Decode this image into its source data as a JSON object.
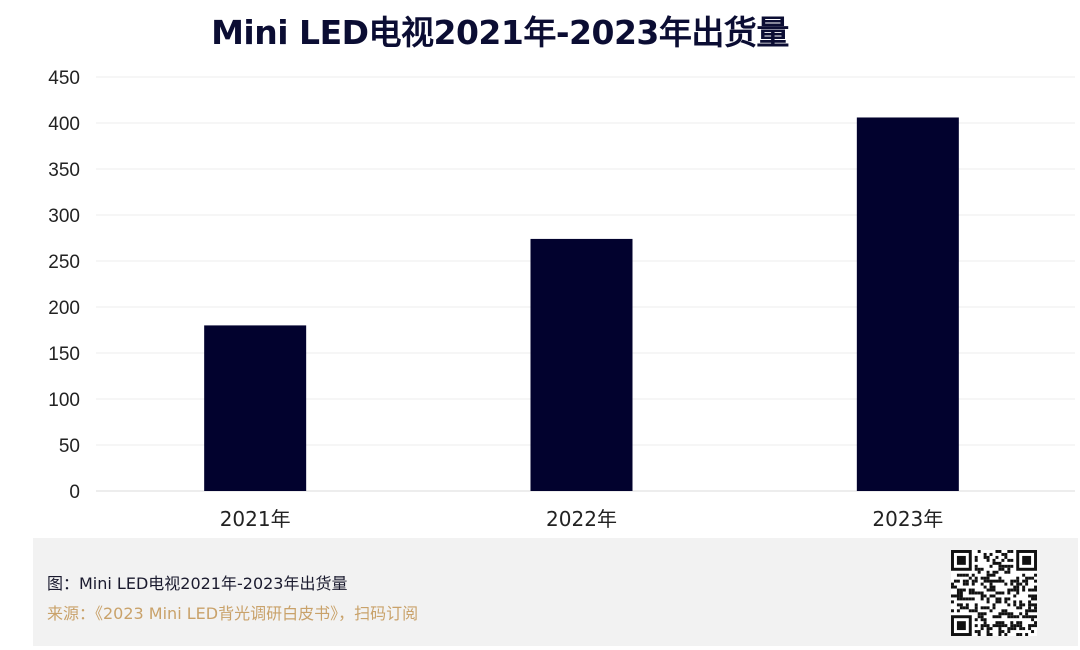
{
  "chart_data": {
    "type": "bar",
    "title": "Mini LED电视2021年-2023年出货量",
    "categories": [
      "2021年",
      "2022年",
      "2023年"
    ],
    "values": [
      180,
      274,
      406
    ],
    "ylim": [
      0,
      450
    ],
    "yticks": [
      0,
      50,
      100,
      150,
      200,
      250,
      300,
      350,
      400,
      450
    ],
    "xlabel": "",
    "ylabel": "",
    "grid": true,
    "bar_color": "#02022e"
  },
  "caption": {
    "figure_label": "图：Mini LED电视2021年-2023年出货量",
    "source_label": "来源：《2023 Mini LED背光调研白皮书》，扫码订阅"
  },
  "qr_code": {
    "icon": "qr-code-icon"
  }
}
